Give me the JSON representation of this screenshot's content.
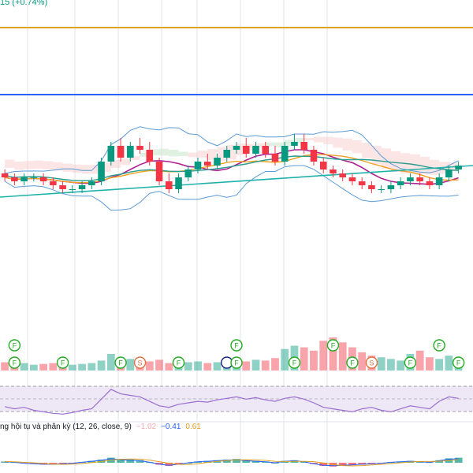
{
  "header": {
    "change_text": "15 (+0.74%)",
    "change_color": "#089981"
  },
  "colors": {
    "up": "#089981",
    "down": "#f23645",
    "grid": "#e0e3eb",
    "orange_level": "#e0a020",
    "blue_level": "#2962ff",
    "bb_band": "#5b9bd5",
    "ma_magenta": "#b02090",
    "ma_orange": "#f0a020",
    "ma_teal": "#20b2aa",
    "ma_green": "#2a9d8f",
    "cloud_green": "#c8e6c9",
    "cloud_red": "#f8d0d0",
    "rsi_line": "#9c6fd0",
    "rsi_band": "#ede7f6",
    "flag_green": "#22aa22",
    "flag_orange": "#e07040",
    "flag_blue": "#1a237e"
  },
  "macd": {
    "title": "ng hội tụ và phân kỳ (12, 26, close, 9)",
    "v1": "−1.02",
    "v2": "−0.41",
    "v3": "0.61",
    "c1": "#f7a8b0",
    "c2": "#2962ff",
    "c3": "#e0a020"
  },
  "markers": {
    "f_label": "F",
    "s_label": "S",
    "items": [
      {
        "index": 1,
        "row": 2,
        "kind": "F"
      },
      {
        "index": 1,
        "row": 1,
        "kind": "F"
      },
      {
        "index": 6,
        "row": 2,
        "kind": "F"
      },
      {
        "index": 12,
        "row": 2,
        "kind": "F"
      },
      {
        "index": 14,
        "row": 2,
        "kind": "S"
      },
      {
        "index": 18,
        "row": 2,
        "kind": "F"
      },
      {
        "index": 23,
        "row": 2,
        "kind": "I"
      },
      {
        "index": 24,
        "row": 2,
        "kind": "F"
      },
      {
        "index": 24,
        "row": 1,
        "kind": "F"
      },
      {
        "index": 30,
        "row": 2,
        "kind": "F"
      },
      {
        "index": 34,
        "row": 1,
        "kind": "F"
      },
      {
        "index": 36,
        "row": 2,
        "kind": "F"
      },
      {
        "index": 38,
        "row": 2,
        "kind": "S"
      },
      {
        "index": 42,
        "row": 2,
        "kind": "F"
      },
      {
        "index": 45,
        "row": 1,
        "kind": "F"
      },
      {
        "index": 47,
        "row": 2,
        "kind": "F"
      }
    ]
  },
  "chart_data": {
    "type": "candlestick",
    "candles": [
      [
        58,
        59,
        56,
        57
      ],
      [
        57,
        58,
        55,
        56
      ],
      [
        56,
        58,
        55,
        57
      ],
      [
        57,
        58,
        56,
        57
      ],
      [
        57,
        58,
        55,
        56
      ],
      [
        56,
        57,
        54,
        55
      ],
      [
        55,
        56,
        53,
        54
      ],
      [
        54,
        55,
        53,
        54
      ],
      [
        54,
        56,
        53,
        55
      ],
      [
        55,
        57,
        54,
        56
      ],
      [
        56,
        62,
        55,
        61
      ],
      [
        61,
        66,
        60,
        65
      ],
      [
        65,
        67,
        61,
        62
      ],
      [
        62,
        66,
        61,
        65
      ],
      [
        65,
        67,
        63,
        64
      ],
      [
        64,
        66,
        60,
        61
      ],
      [
        61,
        62,
        55,
        56
      ],
      [
        56,
        58,
        53,
        54
      ],
      [
        54,
        58,
        53,
        57
      ],
      [
        57,
        60,
        56,
        59
      ],
      [
        59,
        62,
        58,
        61
      ],
      [
        61,
        63,
        59,
        60
      ],
      [
        60,
        63,
        59,
        62
      ],
      [
        62,
        65,
        61,
        64
      ],
      [
        64,
        66,
        63,
        65
      ],
      [
        65,
        67,
        62,
        63
      ],
      [
        63,
        66,
        62,
        65
      ],
      [
        65,
        66,
        62,
        63
      ],
      [
        63,
        65,
        60,
        61
      ],
      [
        61,
        66,
        60,
        65
      ],
      [
        65,
        68,
        64,
        66
      ],
      [
        66,
        68,
        63,
        64
      ],
      [
        64,
        65,
        60,
        61
      ],
      [
        61,
        62,
        58,
        59
      ],
      [
        59,
        60,
        57,
        58
      ],
      [
        58,
        59,
        56,
        57
      ],
      [
        57,
        58,
        55,
        56
      ],
      [
        56,
        57,
        54,
        55
      ],
      [
        55,
        56,
        53,
        54
      ],
      [
        54,
        55,
        53,
        54
      ],
      [
        54,
        56,
        53,
        55
      ],
      [
        55,
        57,
        54,
        56
      ],
      [
        56,
        58,
        55,
        57
      ],
      [
        57,
        58,
        55,
        56
      ],
      [
        56,
        57,
        54,
        55
      ],
      [
        55,
        58,
        54,
        57
      ],
      [
        57,
        60,
        56,
        59
      ],
      [
        59,
        61,
        58,
        60
      ]
    ],
    "volume": [
      10,
      8,
      9,
      7,
      8,
      9,
      6,
      7,
      8,
      9,
      12,
      20,
      15,
      14,
      10,
      11,
      13,
      9,
      12,
      10,
      11,
      9,
      10,
      12,
      14,
      11,
      13,
      12,
      15,
      26,
      30,
      28,
      24,
      36,
      40,
      34,
      28,
      22,
      18,
      16,
      14,
      12,
      20,
      24,
      16,
      14,
      18,
      15
    ],
    "rsi": [
      45,
      42,
      44,
      40,
      38,
      36,
      35,
      37,
      40,
      42,
      55,
      68,
      62,
      60,
      58,
      52,
      46,
      44,
      48,
      50,
      52,
      51,
      54,
      56,
      58,
      55,
      57,
      54,
      52,
      56,
      58,
      55,
      50,
      44,
      42,
      40,
      38,
      42,
      44,
      40,
      38,
      42,
      46,
      44,
      42,
      52,
      58,
      56
    ],
    "macd_hist": [
      0.2,
      0.1,
      -0.1,
      -0.2,
      -0.3,
      -0.3,
      -0.2,
      -0.1,
      0.1,
      0.3,
      0.5,
      0.8,
      0.6,
      0.5,
      0.4,
      0.1,
      -0.3,
      -0.5,
      -0.3,
      0.0,
      0.2,
      0.3,
      0.4,
      0.5,
      0.6,
      0.4,
      0.3,
      0.2,
      0.0,
      0.3,
      0.4,
      0.2,
      -0.2,
      -0.5,
      -0.6,
      -0.5,
      -0.4,
      -0.3,
      -0.2,
      -0.1,
      0.1,
      0.2,
      0.3,
      0.2,
      0.1,
      0.4,
      0.7,
      0.8
    ],
    "levels": [
      95,
      78
    ],
    "ylim": [
      40,
      100
    ]
  }
}
